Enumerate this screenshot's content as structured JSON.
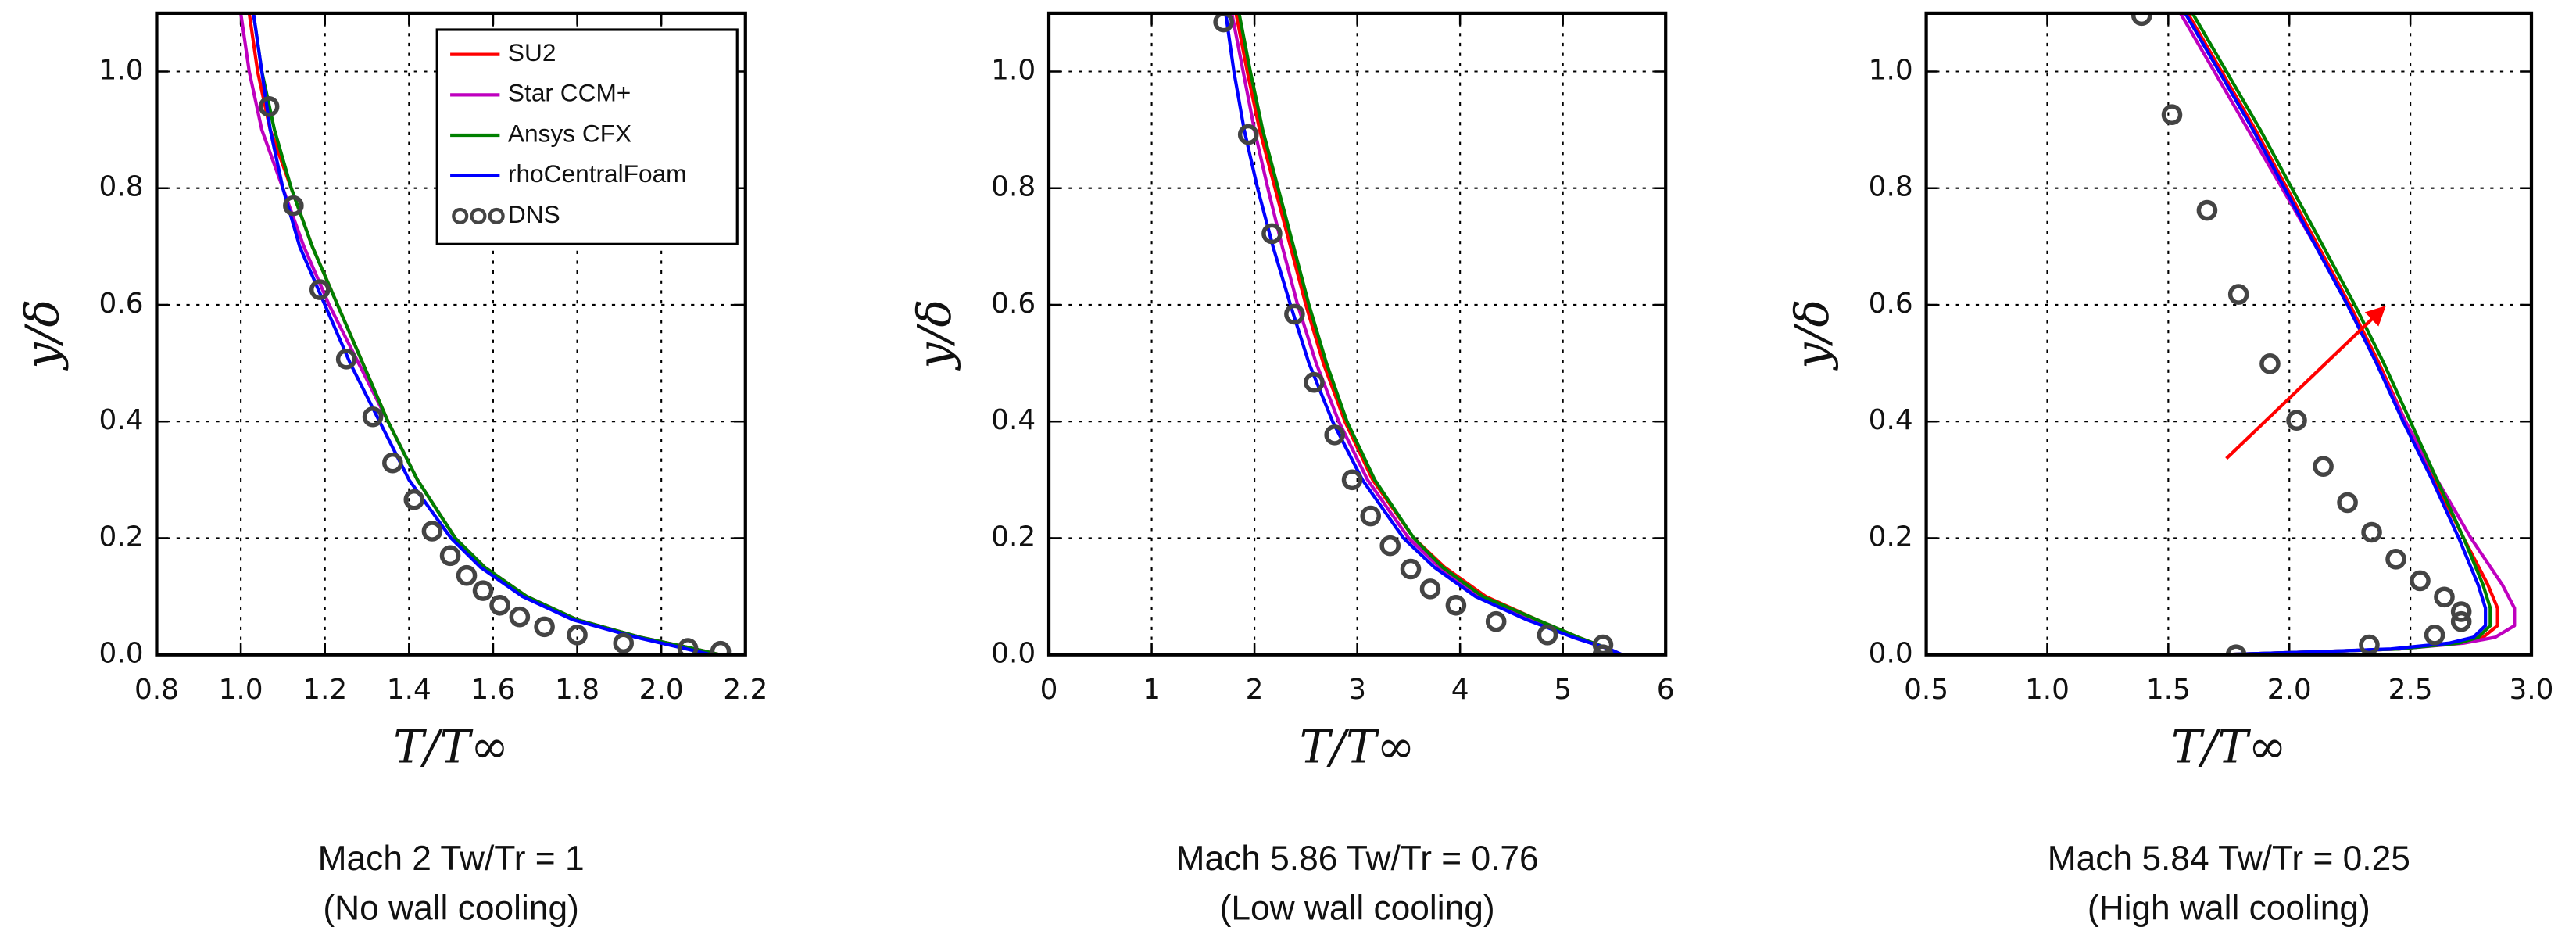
{
  "chart_data": [
    {
      "type": "line",
      "xlabel": "T/T∞",
      "ylabel": "y/δ",
      "caption": [
        "Mach 2 Tw/Tr = 1",
        "(No wall cooling)"
      ],
      "xlim": [
        0.8,
        2.2
      ],
      "ylim": [
        0,
        1.1
      ],
      "xticks": [
        0.8,
        {
          "value": 1,
          "label": "1.0"
        },
        1.2,
        1.4,
        1.6,
        1.8,
        {
          "value": 2,
          "label": "2.0"
        },
        2.2
      ],
      "yticks": [
        {
          "value": 0,
          "label": "0.0"
        },
        0.2,
        0.4,
        0.6,
        0.8,
        {
          "value": 1,
          "label": "1.0"
        }
      ],
      "grid": true,
      "legend": "upper right",
      "series": [
        {
          "name": "SU2",
          "color": "#ff0000",
          "x": [
            2.14,
            2.08,
            1.95,
            1.8,
            1.68,
            1.58,
            1.51,
            1.42,
            1.35,
            1.29,
            1.23,
            1.17,
            1.12,
            1.07,
            1.04,
            1.02
          ],
          "values": [
            0,
            0.01,
            0.03,
            0.06,
            0.1,
            0.15,
            0.2,
            0.3,
            0.4,
            0.5,
            0.6,
            0.7,
            0.8,
            0.9,
            1.0,
            1.1
          ]
        },
        {
          "name": "Star CCM+",
          "color": "#bf00bf",
          "x": [
            2.14,
            2.08,
            1.95,
            1.8,
            1.68,
            1.58,
            1.51,
            1.42,
            1.35,
            1.28,
            1.21,
            1.15,
            1.1,
            1.05,
            1.02,
            1.0
          ],
          "values": [
            0,
            0.01,
            0.03,
            0.06,
            0.1,
            0.15,
            0.2,
            0.3,
            0.4,
            0.5,
            0.6,
            0.7,
            0.8,
            0.9,
            1.0,
            1.1
          ]
        },
        {
          "name": "Ansys CFX",
          "color": "#008000",
          "x": [
            2.14,
            2.08,
            1.95,
            1.8,
            1.68,
            1.58,
            1.51,
            1.42,
            1.35,
            1.29,
            1.23,
            1.17,
            1.12,
            1.08,
            1.05,
            1.03
          ],
          "values": [
            0,
            0.01,
            0.03,
            0.06,
            0.1,
            0.15,
            0.2,
            0.3,
            0.4,
            0.5,
            0.6,
            0.7,
            0.8,
            0.9,
            1.0,
            1.1
          ]
        },
        {
          "name": "rhoCentralFoam",
          "color": "#0000ff",
          "x": [
            2.12,
            2.06,
            1.94,
            1.79,
            1.67,
            1.57,
            1.5,
            1.4,
            1.33,
            1.26,
            1.2,
            1.14,
            1.1,
            1.07,
            1.05,
            1.03
          ],
          "values": [
            0,
            0.01,
            0.03,
            0.06,
            0.1,
            0.15,
            0.2,
            0.3,
            0.4,
            0.5,
            0.6,
            0.7,
            0.8,
            0.9,
            1.0,
            1.1
          ]
        },
        {
          "name": "DNS",
          "color": "#444444",
          "marker": "circle",
          "x": [
            1.067,
            1.125,
            1.188,
            1.251,
            1.314,
            1.361,
            1.412,
            1.455,
            1.498,
            1.537,
            1.576,
            1.616,
            1.663,
            1.722,
            1.8,
            1.91,
            2.063,
            2.141
          ],
          "values": [
            0.94,
            0.77,
            0.626,
            0.507,
            0.408,
            0.329,
            0.266,
            0.212,
            0.17,
            0.136,
            0.11,
            0.085,
            0.065,
            0.048,
            0.034,
            0.02,
            0.011,
            0.006
          ]
        }
      ]
    },
    {
      "type": "line",
      "xlabel": "T/T∞",
      "ylabel": "y/δ",
      "caption": [
        "Mach 5.86 Tw/Tr = 0.76",
        "(Low wall cooling)"
      ],
      "xlim": [
        0,
        6
      ],
      "ylim": [
        0,
        1.1
      ],
      "xticks": [
        0,
        1,
        2,
        3,
        4,
        5,
        6
      ],
      "yticks": [
        {
          "value": 0,
          "label": "0.0"
        },
        0.2,
        0.4,
        0.6,
        0.8,
        {
          "value": 1,
          "label": "1.0"
        }
      ],
      "grid": true,
      "series": [
        {
          "name": "SU2",
          "color": "#ff0000",
          "x": [
            5.55,
            5.45,
            5.15,
            4.75,
            4.25,
            3.85,
            3.55,
            3.15,
            2.88,
            2.67,
            2.5,
            2.35,
            2.2,
            2.05,
            1.93,
            1.82
          ],
          "values": [
            0,
            0.01,
            0.03,
            0.06,
            0.1,
            0.15,
            0.2,
            0.3,
            0.4,
            0.5,
            0.6,
            0.7,
            0.8,
            0.9,
            1.0,
            1.1
          ]
        },
        {
          "name": "Star CCM+",
          "color": "#bf00bf",
          "x": [
            5.55,
            5.45,
            5.1,
            4.7,
            4.2,
            3.8,
            3.5,
            3.1,
            2.82,
            2.6,
            2.42,
            2.27,
            2.13,
            2.0,
            1.89,
            1.78
          ],
          "values": [
            0,
            0.01,
            0.03,
            0.06,
            0.1,
            0.15,
            0.2,
            0.3,
            0.4,
            0.5,
            0.6,
            0.7,
            0.8,
            0.9,
            1.0,
            1.1
          ]
        },
        {
          "name": "Ansys CFX",
          "color": "#008000",
          "x": [
            5.55,
            5.45,
            5.15,
            4.75,
            4.22,
            3.83,
            3.55,
            3.17,
            2.9,
            2.7,
            2.53,
            2.38,
            2.23,
            2.08,
            1.96,
            1.85
          ],
          "values": [
            0,
            0.01,
            0.03,
            0.06,
            0.1,
            0.15,
            0.2,
            0.3,
            0.4,
            0.5,
            0.6,
            0.7,
            0.8,
            0.9,
            1.0,
            1.1
          ]
        },
        {
          "name": "rhoCentralFoam",
          "color": "#0000ff",
          "x": [
            5.58,
            5.45,
            5.1,
            4.65,
            4.15,
            3.75,
            3.45,
            3.05,
            2.76,
            2.53,
            2.35,
            2.18,
            2.03,
            1.9,
            1.8,
            1.72
          ],
          "values": [
            0,
            0.01,
            0.03,
            0.06,
            0.1,
            0.15,
            0.2,
            0.3,
            0.4,
            0.5,
            0.6,
            0.7,
            0.8,
            0.9,
            1.0,
            1.1
          ]
        },
        {
          "name": "DNS",
          "color": "#444444",
          "marker": "circle",
          "x": [
            1.7,
            1.94,
            2.17,
            2.39,
            2.58,
            2.78,
            2.95,
            3.13,
            3.32,
            3.52,
            3.71,
            3.96,
            4.35,
            4.85,
            5.39,
            5.39
          ],
          "values": [
            1.085,
            0.892,
            0.722,
            0.584,
            0.467,
            0.377,
            0.3,
            0.238,
            0.187,
            0.147,
            0.113,
            0.085,
            0.057,
            0.034,
            0.017,
            0
          ]
        }
      ]
    },
    {
      "type": "line",
      "xlabel": "T/T∞",
      "ylabel": "y/δ",
      "caption": [
        "Mach 5.84 Tw/Tr = 0.25",
        "(High wall cooling)"
      ],
      "xlim": [
        0.5,
        3
      ],
      "ylim": [
        0,
        1.1
      ],
      "xticks": [
        0.5,
        {
          "value": 1,
          "label": "1.0"
        },
        1.5,
        {
          "value": 2,
          "label": "2.0"
        },
        2.5,
        {
          "value": 3,
          "label": "3.0"
        }
      ],
      "yticks": [
        {
          "value": 0,
          "label": "0.0"
        },
        0.2,
        0.4,
        0.6,
        0.8,
        {
          "value": 1,
          "label": "1.0"
        }
      ],
      "grid": true,
      "series": [
        {
          "name": "SU2",
          "color": "#ff0000",
          "x": [
            1.7,
            2.1,
            2.45,
            2.7,
            2.8,
            2.86,
            2.86,
            2.82,
            2.72,
            2.6,
            2.48,
            2.37,
            2.25,
            2.12,
            1.99,
            1.86,
            1.72,
            1.58
          ],
          "values": [
            0,
            0.005,
            0.01,
            0.02,
            0.03,
            0.05,
            0.08,
            0.12,
            0.2,
            0.3,
            0.4,
            0.5,
            0.6,
            0.7,
            0.8,
            0.9,
            1.0,
            1.1
          ]
        },
        {
          "name": "Star CCM+",
          "color": "#bf00bf",
          "x": [
            1.7,
            2.1,
            2.45,
            2.72,
            2.85,
            2.93,
            2.93,
            2.88,
            2.75,
            2.61,
            2.48,
            2.36,
            2.24,
            2.11,
            1.97,
            1.83,
            1.69,
            1.55
          ],
          "values": [
            0,
            0.005,
            0.01,
            0.02,
            0.03,
            0.05,
            0.08,
            0.12,
            0.2,
            0.3,
            0.4,
            0.5,
            0.6,
            0.7,
            0.8,
            0.9,
            1.0,
            1.1
          ]
        },
        {
          "name": "Ansys CFX",
          "color": "#008000",
          "x": [
            1.7,
            2.1,
            2.45,
            2.7,
            2.78,
            2.83,
            2.83,
            2.8,
            2.72,
            2.61,
            2.5,
            2.39,
            2.27,
            2.14,
            2.01,
            1.88,
            1.74,
            1.6
          ],
          "values": [
            0,
            0.005,
            0.01,
            0.02,
            0.03,
            0.05,
            0.08,
            0.12,
            0.2,
            0.3,
            0.4,
            0.5,
            0.6,
            0.7,
            0.8,
            0.9,
            1.0,
            1.1
          ]
        },
        {
          "name": "rhoCentralFoam",
          "color": "#0000ff",
          "x": [
            1.7,
            2.1,
            2.42,
            2.66,
            2.76,
            2.81,
            2.81,
            2.78,
            2.7,
            2.59,
            2.47,
            2.36,
            2.24,
            2.11,
            1.98,
            1.85,
            1.71,
            1.57
          ],
          "values": [
            0,
            0.005,
            0.01,
            0.02,
            0.03,
            0.05,
            0.08,
            0.12,
            0.2,
            0.3,
            0.4,
            0.5,
            0.6,
            0.7,
            0.8,
            0.9,
            1.0,
            1.1
          ]
        },
        {
          "name": "DNS",
          "color": "#444444",
          "marker": "circle",
          "x": [
            1.39,
            1.515,
            1.66,
            1.79,
            1.92,
            2.03,
            2.14,
            2.24,
            2.34,
            2.44,
            2.54,
            2.64,
            2.71,
            2.71,
            2.6,
            2.33,
            1.78
          ],
          "values": [
            1.096,
            0.926,
            0.762,
            0.618,
            0.499,
            0.402,
            0.323,
            0.261,
            0.21,
            0.164,
            0.127,
            0.099,
            0.074,
            0.057,
            0.034,
            0.017,
            0
          ]
        }
      ]
    }
  ]
}
